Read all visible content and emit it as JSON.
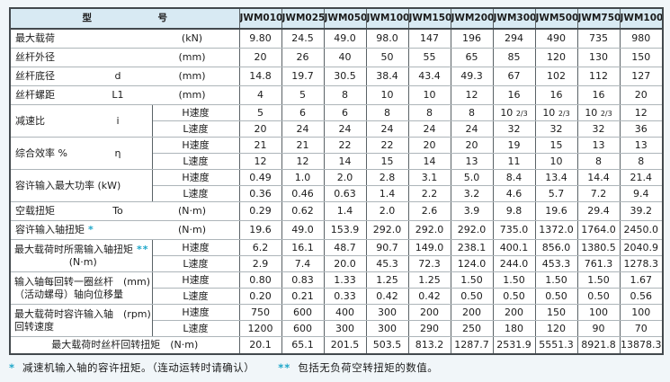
{
  "colors": {
    "header_bg": "#d8eaf3",
    "star": "#1ea7c9",
    "border_dark": "#5a6266",
    "border_light": "#adb5b9",
    "page_bg": "#f1f6f9",
    "cell_bg": "#ffffff"
  },
  "table": {
    "model_header": "型　　　　　　　号",
    "models": [
      "JWM010",
      "JWM025",
      "JWM050",
      "JWM100",
      "JWM150",
      "JWM200",
      "JWM300",
      "JWM500",
      "JWM750",
      "JWM1000"
    ],
    "speed_labels": {
      "h": "H速度",
      "l": "L速度"
    },
    "rows": [
      {
        "kind": "single",
        "label": "最大载荷",
        "symbol": "",
        "star": "",
        "unit": "(kN)",
        "values": [
          "9.80",
          "24.5",
          "49.0",
          "98.0",
          "147",
          "196",
          "294",
          "490",
          "735",
          "980"
        ]
      },
      {
        "kind": "single",
        "label": "丝杆外径",
        "symbol": "",
        "star": "",
        "unit": "(mm)",
        "values": [
          "20",
          "26",
          "40",
          "50",
          "55",
          "65",
          "85",
          "120",
          "130",
          "150"
        ]
      },
      {
        "kind": "single",
        "label": "丝杆底径",
        "symbol": "d",
        "star": "",
        "unit": "(mm)",
        "values": [
          "14.8",
          "19.7",
          "30.5",
          "38.4",
          "43.4",
          "49.3",
          "67",
          "102",
          "112",
          "127"
        ]
      },
      {
        "kind": "single",
        "label": "丝杆螺距",
        "symbol": "L1",
        "star": "",
        "unit": "(mm)",
        "values": [
          "4",
          "5",
          "8",
          "10",
          "10",
          "12",
          "16",
          "16",
          "16",
          "20"
        ]
      },
      {
        "kind": "dual",
        "label": "减速比",
        "symbol": "i",
        "star": "",
        "h": [
          "5",
          "6",
          "6",
          "8",
          "8",
          "8",
          "10 2/3",
          "10 2/3",
          "10 2/3",
          "12"
        ],
        "l": [
          "20",
          "24",
          "24",
          "24",
          "24",
          "24",
          "32",
          "32",
          "32",
          "36"
        ]
      },
      {
        "kind": "dual",
        "label": "综合效率 %",
        "symbol": "η",
        "star": "",
        "h": [
          "21",
          "21",
          "22",
          "22",
          "20",
          "20",
          "19",
          "15",
          "13",
          "13"
        ],
        "l": [
          "12",
          "12",
          "14",
          "15",
          "14",
          "13",
          "11",
          "10",
          "8",
          "8"
        ]
      },
      {
        "kind": "dual",
        "label": "容许输入最大功率 (kW)",
        "symbol": "",
        "star": "",
        "h": [
          "0.49",
          "1.0",
          "2.0",
          "2.8",
          "3.1",
          "5.0",
          "8.4",
          "13.4",
          "14.4",
          "21.4"
        ],
        "l": [
          "0.36",
          "0.46",
          "0.63",
          "1.4",
          "2.2",
          "3.2",
          "4.6",
          "5.7",
          "7.2",
          "9.4"
        ]
      },
      {
        "kind": "single",
        "label": "空载扭矩",
        "symbol": "To",
        "star": "",
        "unit": "(N·m)",
        "values": [
          "0.29",
          "0.62",
          "1.4",
          "2.0",
          "2.6",
          "3.9",
          "9.8",
          "19.6",
          "29.4",
          "39.2"
        ]
      },
      {
        "kind": "single",
        "label": "容许输入轴扭矩",
        "symbol": "",
        "star": "*",
        "unit": "(N·m)",
        "values": [
          "19.6",
          "49.0",
          "153.9",
          "292.0",
          "292.0",
          "292.0",
          "735.0",
          "1372.0",
          "1764.0",
          "2450.0"
        ]
      },
      {
        "kind": "dual2",
        "line1": "最大载荷时所需输入轴扭矩",
        "star": "**",
        "line2": "(N·m)",
        "line2_center": true,
        "h": [
          "6.2",
          "16.1",
          "48.7",
          "90.7",
          "149.0",
          "238.1",
          "400.1",
          "856.0",
          "1380.5",
          "2040.9"
        ],
        "l": [
          "2.9",
          "7.4",
          "20.0",
          "45.3",
          "72.3",
          "124.0",
          "244.0",
          "453.3",
          "761.3",
          "1278.3"
        ]
      },
      {
        "kind": "dual2",
        "line1": "输入轴每回转一圈丝杆　(mm)",
        "star": "",
        "line2": "（活动螺母）轴向位移量",
        "line2_center": false,
        "h": [
          "0.80",
          "0.83",
          "1.33",
          "1.25",
          "1.25",
          "1.50",
          "1.50",
          "1.50",
          "1.50",
          "1.67"
        ],
        "l": [
          "0.20",
          "0.21",
          "0.33",
          "0.42",
          "0.42",
          "0.50",
          "0.50",
          "0.50",
          "0.50",
          "0.56"
        ]
      },
      {
        "kind": "dual2",
        "line1": "最大载荷时容许输入轴　(rpm)",
        "star": "",
        "line2": "回转速度",
        "line2_center": false,
        "h": [
          "750",
          "600",
          "400",
          "300",
          "200",
          "200",
          "200",
          "150",
          "100",
          "100"
        ],
        "l": [
          "1200",
          "600",
          "300",
          "300",
          "290",
          "250",
          "180",
          "120",
          "90",
          "70"
        ]
      },
      {
        "kind": "footer",
        "label": "最大载荷时丝杆回转扭矩　(N·m)",
        "values": [
          "20.1",
          "65.1",
          "201.5",
          "503.5",
          "813.2",
          "1287.7",
          "2531.9",
          "5551.3",
          "8921.8",
          "13878.3"
        ]
      }
    ]
  },
  "footnotes": [
    {
      "star": "*",
      "text": "减速机输入轴的容许扭矩。（连动运转时请确认）"
    },
    {
      "star": "**",
      "text": "包括无负荷空转扭矩的数值。"
    }
  ]
}
